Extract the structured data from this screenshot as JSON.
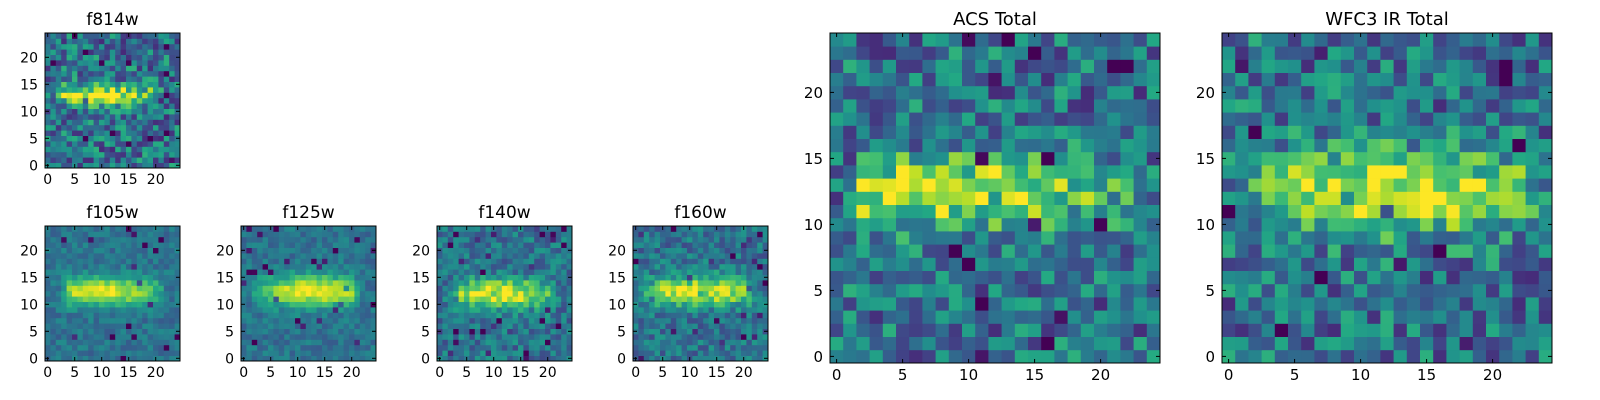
{
  "chart_data": [
    {
      "type": "heatmap",
      "title": "f814w",
      "colormap": "viridis",
      "grid": false,
      "xlim": [
        0,
        24
      ],
      "ylim": [
        0,
        24
      ],
      "xticks": [
        0,
        5,
        10,
        15,
        20
      ],
      "yticks": [
        0,
        5,
        10,
        15,
        20
      ],
      "xtick_labels": [
        "0",
        "5",
        "10",
        "15",
        "20"
      ],
      "ytick_labels": [
        "0",
        "5",
        "10",
        "15",
        "20"
      ],
      "source_band": {
        "row_center": 13,
        "row_width": 1.8,
        "col_start": 3,
        "col_end": 20,
        "peak_col": 10
      },
      "noise_level": "high"
    },
    {
      "type": "heatmap",
      "title": "f105w",
      "colormap": "viridis",
      "grid": false,
      "xlim": [
        0,
        24
      ],
      "ylim": [
        0,
        24
      ],
      "xticks": [
        0,
        5,
        10,
        15,
        20
      ],
      "yticks": [
        0,
        5,
        10,
        15,
        20
      ],
      "xtick_labels": [
        "0",
        "5",
        "10",
        "15",
        "20"
      ],
      "ytick_labels": [
        "0",
        "5",
        "10",
        "15",
        "20"
      ],
      "source_band": {
        "row_center": 12.5,
        "row_width": 2.6,
        "col_start": 4,
        "col_end": 20,
        "peak_col": 10
      },
      "noise_level": "low"
    },
    {
      "type": "heatmap",
      "title": "f125w",
      "colormap": "viridis",
      "grid": false,
      "xlim": [
        0,
        24
      ],
      "ylim": [
        0,
        24
      ],
      "xticks": [
        0,
        5,
        10,
        15,
        20
      ],
      "yticks": [
        0,
        5,
        10,
        15,
        20
      ],
      "xtick_labels": [
        "0",
        "5",
        "10",
        "15",
        "20"
      ],
      "ytick_labels": [
        "0",
        "5",
        "10",
        "15",
        "20"
      ],
      "source_band": {
        "row_center": 12.5,
        "row_width": 2.8,
        "col_start": 3,
        "col_end": 20,
        "peak_col": 13
      },
      "noise_level": "low"
    },
    {
      "type": "heatmap",
      "title": "f140w",
      "colormap": "viridis",
      "grid": false,
      "xlim": [
        0,
        24
      ],
      "ylim": [
        0,
        24
      ],
      "xticks": [
        0,
        5,
        10,
        15,
        20
      ],
      "yticks": [
        0,
        5,
        10,
        15,
        20
      ],
      "xtick_labels": [
        "0",
        "5",
        "10",
        "15",
        "20"
      ],
      "ytick_labels": [
        "0",
        "5",
        "10",
        "15",
        "20"
      ],
      "source_band": {
        "row_center": 12,
        "row_width": 2.6,
        "col_start": 4,
        "col_end": 20,
        "peak_col": 11
      },
      "noise_level": "medium"
    },
    {
      "type": "heatmap",
      "title": "f160w",
      "colormap": "viridis",
      "grid": false,
      "xlim": [
        0,
        24
      ],
      "ylim": [
        0,
        24
      ],
      "xticks": [
        0,
        5,
        10,
        15,
        20
      ],
      "yticks": [
        0,
        5,
        10,
        15,
        20
      ],
      "xtick_labels": [
        "0",
        "5",
        "10",
        "15",
        "20"
      ],
      "ytick_labels": [
        "0",
        "5",
        "10",
        "15",
        "20"
      ],
      "source_band": {
        "row_center": 12.5,
        "row_width": 2.6,
        "col_start": 3,
        "col_end": 21,
        "peak_col": 12
      },
      "noise_level": "medium"
    },
    {
      "type": "heatmap",
      "title": "ACS Total",
      "colormap": "viridis",
      "grid": false,
      "xlim": [
        0,
        24
      ],
      "ylim": [
        0,
        24
      ],
      "xticks": [
        0,
        5,
        10,
        15,
        20
      ],
      "yticks": [
        0,
        5,
        10,
        15,
        20
      ],
      "xtick_labels": [
        "0",
        "5",
        "10",
        "15",
        "20"
      ],
      "ytick_labels": [
        "0",
        "5",
        "10",
        "15",
        "20"
      ],
      "source_band": {
        "row_center": 12.5,
        "row_width": 2.4,
        "col_start": 2,
        "col_end": 22,
        "peak_col": 8
      },
      "noise_level": "high"
    },
    {
      "type": "heatmap",
      "title": "WFC3 IR Total",
      "colormap": "viridis",
      "grid": false,
      "xlim": [
        0,
        24
      ],
      "ylim": [
        0,
        24
      ],
      "xticks": [
        0,
        5,
        10,
        15,
        20
      ],
      "yticks": [
        0,
        5,
        10,
        15,
        20
      ],
      "xtick_labels": [
        "0",
        "5",
        "10",
        "15",
        "20"
      ],
      "ytick_labels": [
        "0",
        "5",
        "10",
        "15",
        "20"
      ],
      "source_band": {
        "row_center": 12.5,
        "row_width": 3.0,
        "col_start": 3,
        "col_end": 22,
        "peak_col": 12
      },
      "noise_level": "high"
    }
  ]
}
